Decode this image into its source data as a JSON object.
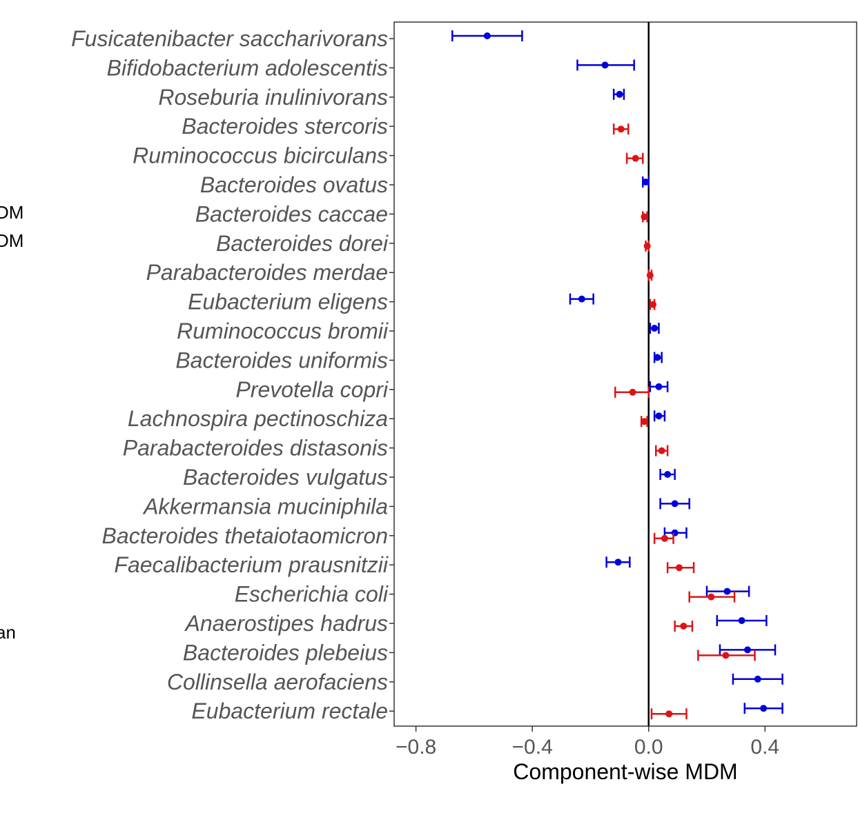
{
  "chart_data": {
    "type": "dot-errorbar",
    "xlabel": "Component-wise MDM",
    "xticks": [
      -0.8,
      -0.4,
      0.0,
      0.4
    ],
    "xtick_labels": [
      "−0.8",
      "−0.4",
      "0.0",
      "0.4"
    ],
    "xlim": [
      -0.875,
      0.715
    ],
    "reference_line_x": 0,
    "categories": [
      "Fusicatenibacter saccharivorans",
      "Bifidobacterium adolescentis",
      "Roseburia inulinivorans",
      "Bacteroides stercoris",
      "Ruminococcus bicirculans",
      "Bacteroides ovatus",
      "Bacteroides caccae",
      "Bacteroides dorei",
      "Parabacteroides merdae",
      "Eubacterium eligens",
      "Ruminococcus bromii",
      "Bacteroides uniformis",
      "Prevotella copri",
      "Lachnospira pectinoschiza",
      "Parabacteroides distasonis",
      "Bacteroides vulgatus",
      "Akkermansia muciniphila",
      "Bacteroides thetaiotaomicron",
      "Faecalibacterium prausnitzii",
      "Escherichia coli",
      "Anaerostipes hadrus",
      "Bacteroides plebeius",
      "Collinsella aerofaciens",
      "Eubacterium rectale"
    ],
    "series": [
      {
        "name": "blue",
        "color": "#0000d8",
        "points": [
          {
            "category": "Fusicatenibacter saccharivorans",
            "value": -0.555,
            "low": -0.675,
            "high": -0.435
          },
          {
            "category": "Bifidobacterium adolescentis",
            "value": -0.15,
            "low": -0.245,
            "high": -0.05
          },
          {
            "category": "Roseburia inulinivorans",
            "value": -0.1,
            "low": -0.12,
            "high": -0.085
          },
          {
            "category": "Bacteroides ovatus",
            "value": -0.01,
            "low": -0.02,
            "high": 0.0
          },
          {
            "category": "Eubacterium eligens",
            "value": -0.23,
            "low": -0.27,
            "high": -0.19
          },
          {
            "category": "Ruminococcus bromii",
            "value": 0.02,
            "low": 0.005,
            "high": 0.035
          },
          {
            "category": "Bacteroides uniformis",
            "value": 0.03,
            "low": 0.02,
            "high": 0.045
          },
          {
            "category": "Prevotella copri",
            "value": 0.035,
            "low": 0.005,
            "high": 0.065
          },
          {
            "category": "Lachnospira pectinoschiza",
            "value": 0.035,
            "low": 0.02,
            "high": 0.055
          },
          {
            "category": "Bacteroides vulgatus",
            "value": 0.065,
            "low": 0.04,
            "high": 0.09
          },
          {
            "category": "Akkermansia muciniphila",
            "value": 0.09,
            "low": 0.04,
            "high": 0.14
          },
          {
            "category": "Bacteroides thetaiotaomicron",
            "value": 0.09,
            "low": 0.055,
            "high": 0.13
          },
          {
            "category": "Faecalibacterium prausnitzii",
            "value": -0.105,
            "low": -0.145,
            "high": -0.065
          },
          {
            "category": "Escherichia coli",
            "value": 0.27,
            "low": 0.2,
            "high": 0.345
          },
          {
            "category": "Anaerostipes hadrus",
            "value": 0.32,
            "low": 0.235,
            "high": 0.405
          },
          {
            "category": "Bacteroides plebeius",
            "value": 0.34,
            "low": 0.245,
            "high": 0.435
          },
          {
            "category": "Collinsella aerofaciens",
            "value": 0.375,
            "low": 0.29,
            "high": 0.46
          },
          {
            "category": "Eubacterium rectale",
            "value": 0.395,
            "low": 0.33,
            "high": 0.46
          }
        ]
      },
      {
        "name": "red",
        "color": "#dc1414",
        "points": [
          {
            "category": "Bacteroides stercoris",
            "value": -0.095,
            "low": -0.12,
            "high": -0.07
          },
          {
            "category": "Ruminococcus bicirculans",
            "value": -0.045,
            "low": -0.075,
            "high": -0.02
          },
          {
            "category": "Bacteroides caccae",
            "value": -0.015,
            "low": -0.02,
            "high": -0.005
          },
          {
            "category": "Bacteroides dorei",
            "value": -0.005,
            "low": -0.01,
            "high": 0.0
          },
          {
            "category": "Parabacteroides merdae",
            "value": 0.005,
            "low": 0.0,
            "high": 0.01
          },
          {
            "category": "Eubacterium eligens",
            "value": 0.015,
            "low": 0.005,
            "high": 0.02
          },
          {
            "category": "Prevotella copri",
            "value": -0.055,
            "low": -0.115,
            "high": 0.0
          },
          {
            "category": "Lachnospira pectinoschiza",
            "value": -0.015,
            "low": -0.025,
            "high": -0.005
          },
          {
            "category": "Parabacteroides distasonis",
            "value": 0.045,
            "low": 0.025,
            "high": 0.065
          },
          {
            "category": "Bacteroides thetaiotaomicron",
            "value": 0.055,
            "low": 0.02,
            "high": 0.085
          },
          {
            "category": "Faecalibacterium prausnitzii",
            "value": 0.105,
            "low": 0.065,
            "high": 0.155
          },
          {
            "category": "Escherichia coli",
            "value": 0.215,
            "low": 0.14,
            "high": 0.295
          },
          {
            "category": "Anaerostipes hadrus",
            "value": 0.12,
            "low": 0.09,
            "high": 0.15
          },
          {
            "category": "Bacteroides plebeius",
            "value": 0.265,
            "low": 0.17,
            "high": 0.365
          },
          {
            "category": "Eubacterium rectale",
            "value": 0.07,
            "low": 0.01,
            "high": 0.13
          }
        ]
      }
    ]
  },
  "legend_fragments": [
    "DM",
    "DM",
    "an"
  ]
}
